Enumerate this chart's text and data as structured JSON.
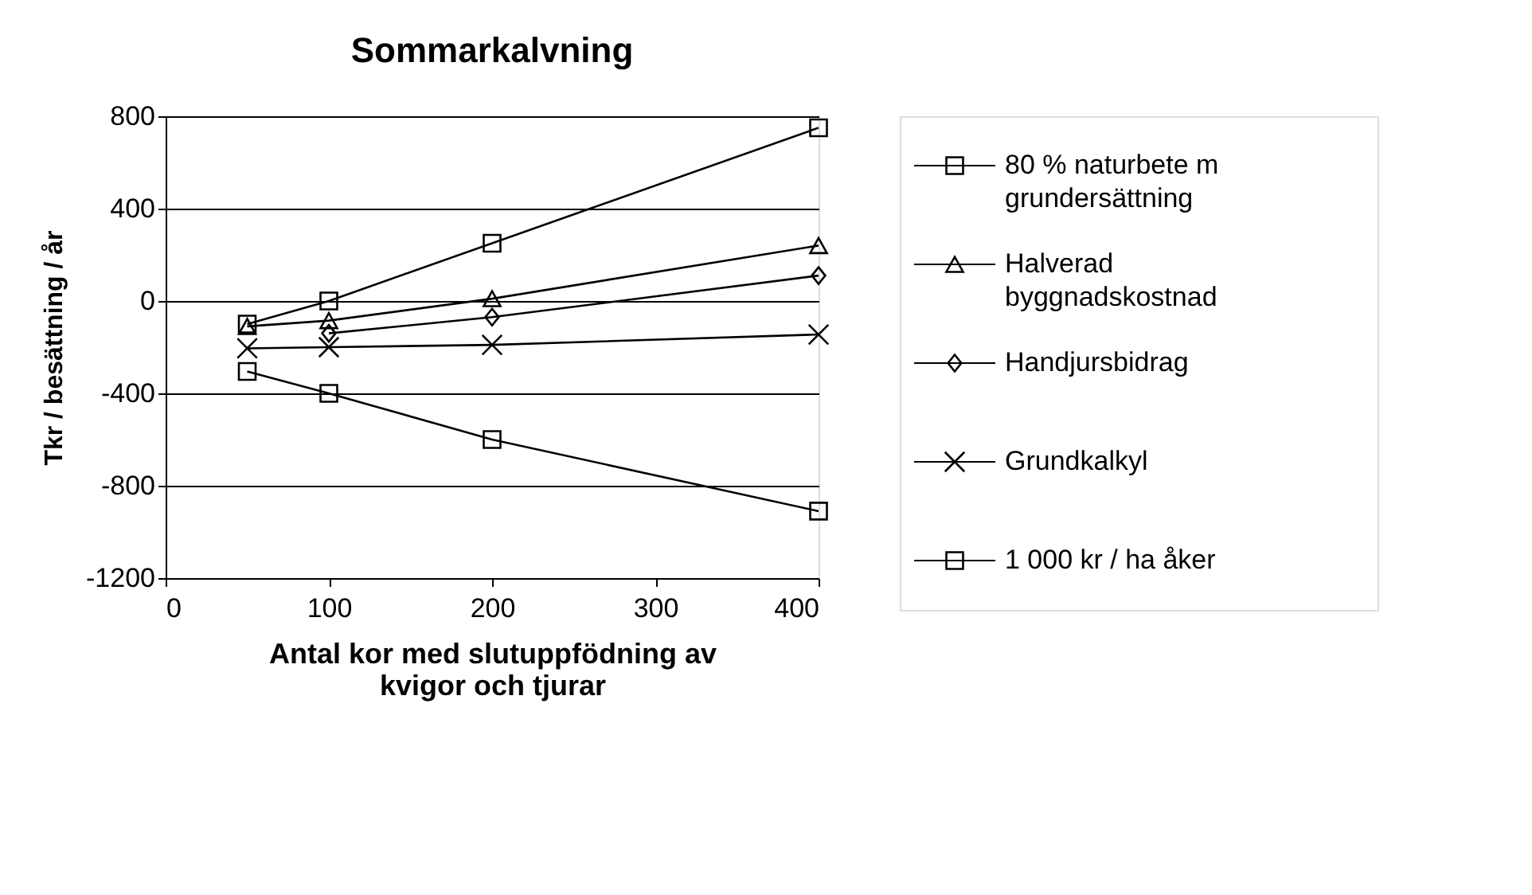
{
  "chart_data": {
    "type": "line",
    "title": "Sommarkalvning",
    "xlabel": "Antal kor med slutuppfödning av kvigor och tjurar",
    "ylabel": "Tkr / besättning / år",
    "x": [
      50,
      100,
      200,
      400
    ],
    "xlim": [
      0,
      400
    ],
    "xticks": [
      0,
      100,
      200,
      300,
      400
    ],
    "ylim": [
      -1200,
      800
    ],
    "yticks": [
      {
        "value": -1200,
        "label": "-1200"
      },
      {
        "value": -800,
        "label": "-800"
      },
      {
        "value": -400,
        "label": "-400"
      },
      0,
      400,
      800
    ],
    "grid": "y",
    "legend": "right",
    "line_style": "solid",
    "series": [
      {
        "name": "80 % naturbete m grundersättning",
        "color": "#000000",
        "marker": "square",
        "values": [
          -100,
          0,
          250,
          750
        ]
      },
      {
        "name": "Halverad byggnadskostnad",
        "color": "#000000",
        "marker": "triangle",
        "values": [
          -110,
          -85,
          10,
          240
        ]
      },
      {
        "name": "Handjursbidrag",
        "color": "#000000",
        "marker": "diamond",
        "values": [
          null,
          -140,
          -70,
          110
        ]
      },
      {
        "name": "Grundkalkyl",
        "color": "#000000",
        "marker": "cross",
        "values": [
          -205,
          -200,
          -190,
          -145
        ]
      },
      {
        "name": "1 000 kr / ha åker",
        "color": "#000000",
        "marker": "square",
        "values": [
          -305,
          -400,
          -600,
          -910
        ]
      }
    ]
  }
}
